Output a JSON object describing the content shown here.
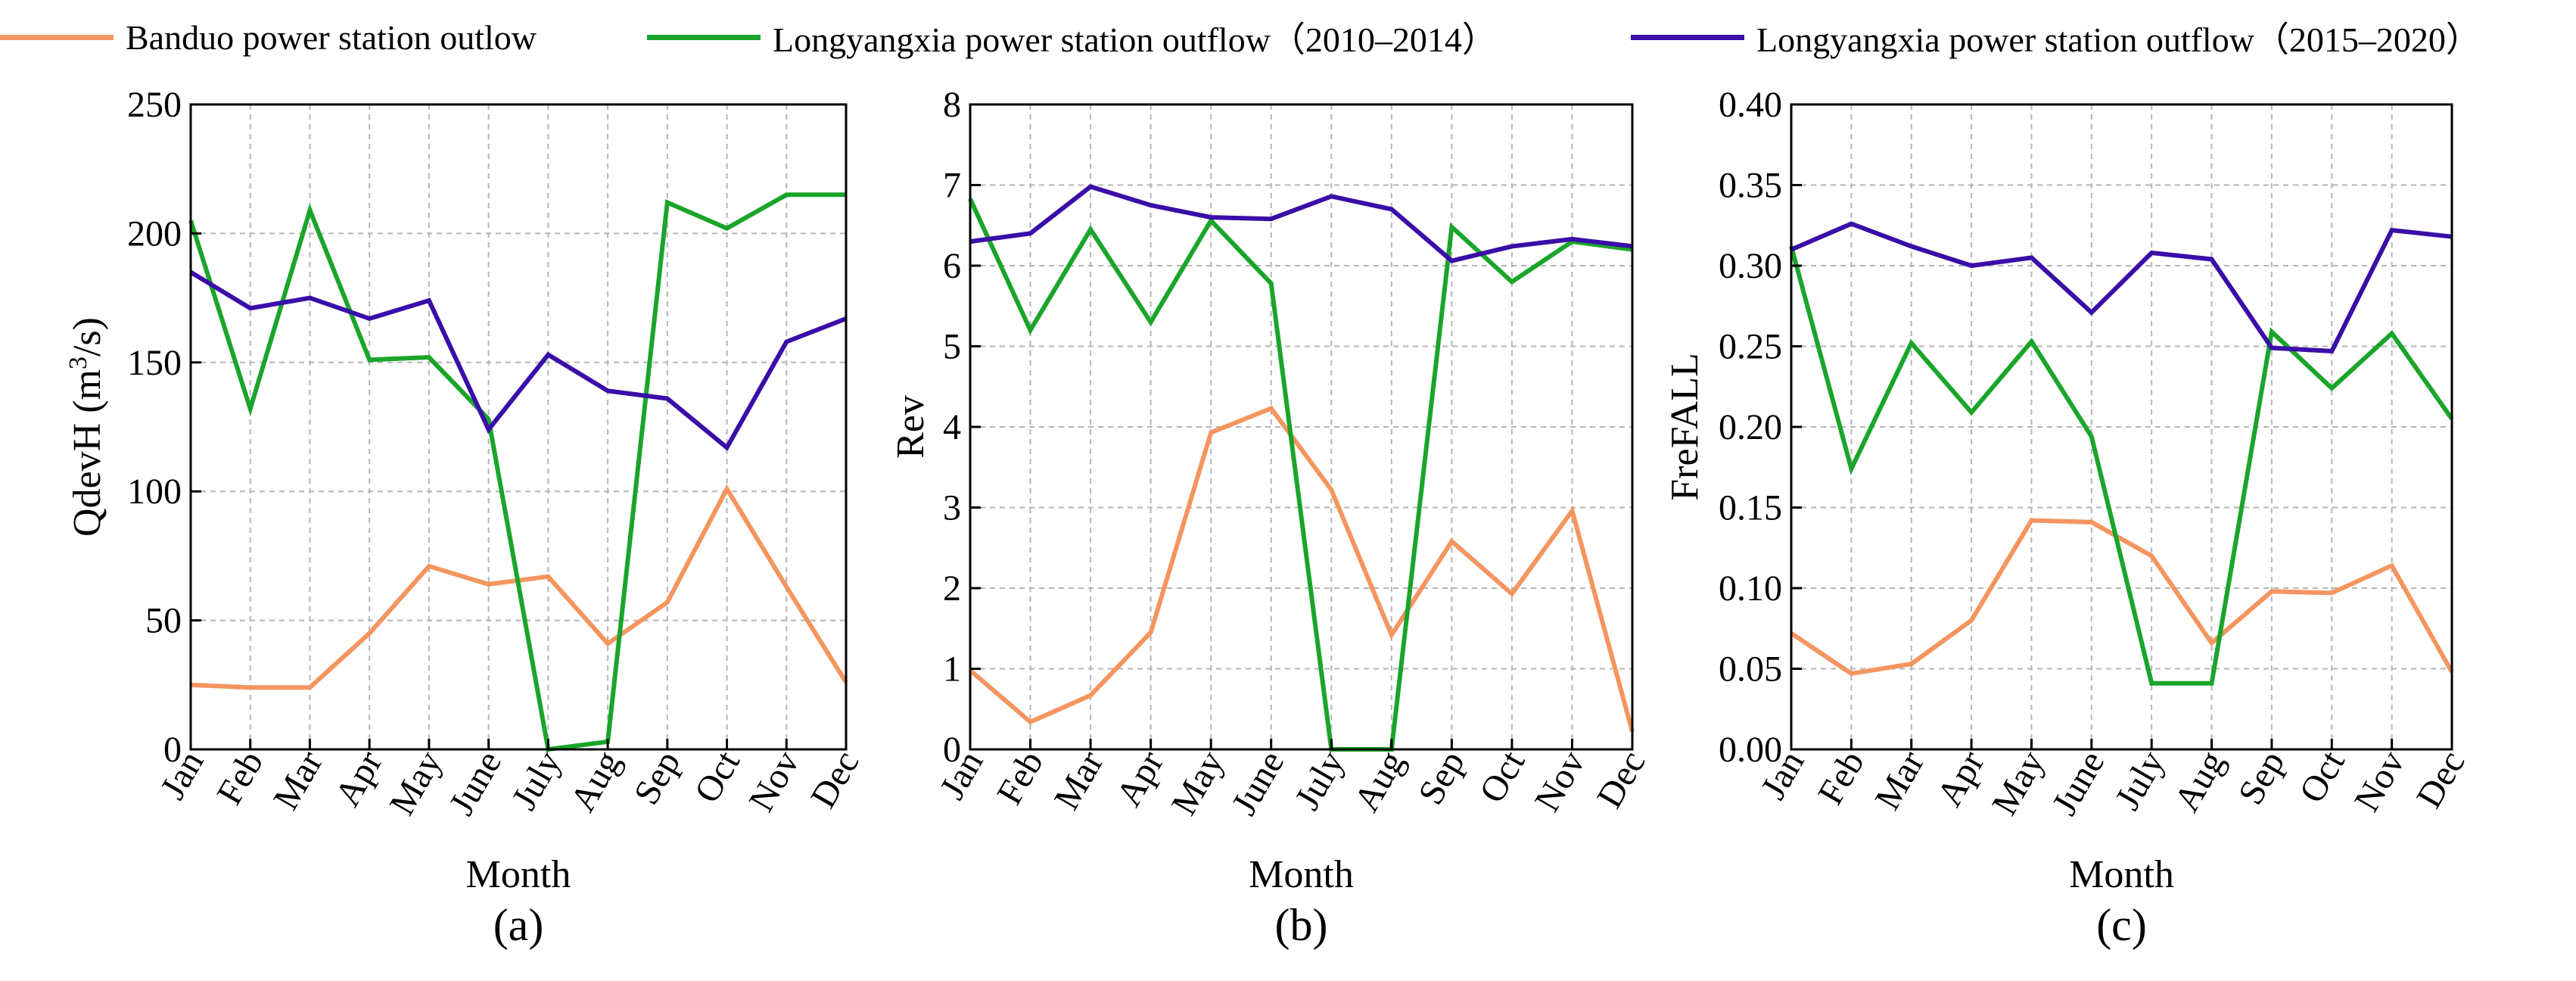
{
  "legend": {
    "banduo": "Banduo power station outlow",
    "lyx_2010": "Longyangxia power station outflow（2010–2014）",
    "lyx_2015": "Longyangxia power station outflow（2015–2020）"
  },
  "colors": {
    "banduo": "#f4955f",
    "lyx_2010": "#1aa52a",
    "lyx_2015": "#3a0ea8",
    "grid": "#b5b5b5"
  },
  "chart_data": [
    {
      "type": "line",
      "panel_label": "(a)",
      "xlabel": "Month",
      "ylabel_main": "QdevH (m",
      "ylabel_sup": "3",
      "ylabel_tail": "/s)",
      "categories": [
        "Jan",
        "Feb",
        "Mar",
        "Apr",
        "May",
        "June",
        "July",
        "Aug",
        "Sep",
        "Oct",
        "Nov",
        "Dec"
      ],
      "ylim": [
        0,
        250
      ],
      "yticks": [
        0,
        50,
        100,
        150,
        200,
        250
      ],
      "ytick_labels": [
        "0",
        "50",
        "100",
        "150",
        "200",
        "250"
      ],
      "series": [
        {
          "name": "Banduo power station outlow",
          "key": "banduo",
          "values": [
            25,
            24,
            24,
            45,
            71,
            64,
            67,
            41,
            57,
            101,
            63,
            26
          ]
        },
        {
          "name": "Longyangxia power station outflow（2010–2014）",
          "key": "lyx_2010",
          "values": [
            205,
            132,
            209,
            151,
            152,
            128,
            0,
            3,
            212,
            202,
            215,
            215
          ]
        },
        {
          "name": "Longyangxia power station outflow（2015–2020）",
          "key": "lyx_2015",
          "values": [
            185,
            171,
            175,
            167,
            174,
            124,
            153,
            139,
            136,
            117,
            158,
            167
          ]
        }
      ]
    },
    {
      "type": "line",
      "panel_label": "(b)",
      "xlabel": "Month",
      "ylabel_main": "Rev",
      "categories": [
        "Jan",
        "Feb",
        "Mar",
        "Apr",
        "May",
        "June",
        "July",
        "Aug",
        "Sep",
        "Oct",
        "Nov",
        "Dec"
      ],
      "ylim": [
        0,
        8
      ],
      "yticks": [
        0,
        1,
        2,
        3,
        4,
        5,
        6,
        7,
        8
      ],
      "ytick_labels": [
        "0",
        "1",
        "2",
        "3",
        "4",
        "5",
        "6",
        "7",
        "8"
      ],
      "series": [
        {
          "name": "Banduo power station outlow",
          "key": "banduo",
          "values": [
            0.98,
            0.34,
            0.67,
            1.45,
            3.93,
            4.23,
            3.22,
            1.42,
            2.58,
            1.93,
            2.96,
            0.22
          ]
        },
        {
          "name": "Longyangxia power station outflow（2010–2014）",
          "key": "lyx_2010",
          "values": [
            6.83,
            5.2,
            6.45,
            5.3,
            6.56,
            5.78,
            0,
            0,
            6.48,
            5.8,
            6.3,
            6.2
          ]
        },
        {
          "name": "Longyangxia power station outflow（2015–2020）",
          "key": "lyx_2015",
          "values": [
            6.3,
            6.4,
            6.98,
            6.75,
            6.6,
            6.58,
            6.86,
            6.7,
            6.06,
            6.24,
            6.33,
            6.24
          ]
        }
      ]
    },
    {
      "type": "line",
      "panel_label": "(c)",
      "xlabel": "Month",
      "ylabel_main": "FreFALL",
      "categories": [
        "Jan",
        "Feb",
        "Mar",
        "Apr",
        "May",
        "June",
        "July",
        "Aug",
        "Sep",
        "Oct",
        "Nov",
        "Dec"
      ],
      "ylim": [
        0,
        0.4
      ],
      "yticks": [
        0,
        0.05,
        0.1,
        0.15,
        0.2,
        0.25,
        0.3,
        0.35,
        0.4
      ],
      "ytick_labels": [
        "0.00",
        "0.05",
        "0.10",
        "0.15",
        "0.20",
        "0.25",
        "0.30",
        "0.35",
        "0.40"
      ],
      "series": [
        {
          "name": "Banduo power station outlow",
          "key": "banduo",
          "values": [
            0.072,
            0.047,
            0.053,
            0.08,
            0.142,
            0.141,
            0.12,
            0.066,
            0.098,
            0.097,
            0.114,
            0.048
          ]
        },
        {
          "name": "Longyangxia power station outflow（2010–2014）",
          "key": "lyx_2010",
          "values": [
            0.312,
            0.174,
            0.252,
            0.209,
            0.253,
            0.194,
            0.041,
            0.041,
            0.259,
            0.224,
            0.258,
            0.205
          ]
        },
        {
          "name": "Longyangxia power station outflow（2015–2020）",
          "key": "lyx_2015",
          "values": [
            0.31,
            0.326,
            0.312,
            0.3,
            0.305,
            0.271,
            0.308,
            0.304,
            0.249,
            0.247,
            0.322,
            0.318
          ]
        }
      ]
    }
  ]
}
